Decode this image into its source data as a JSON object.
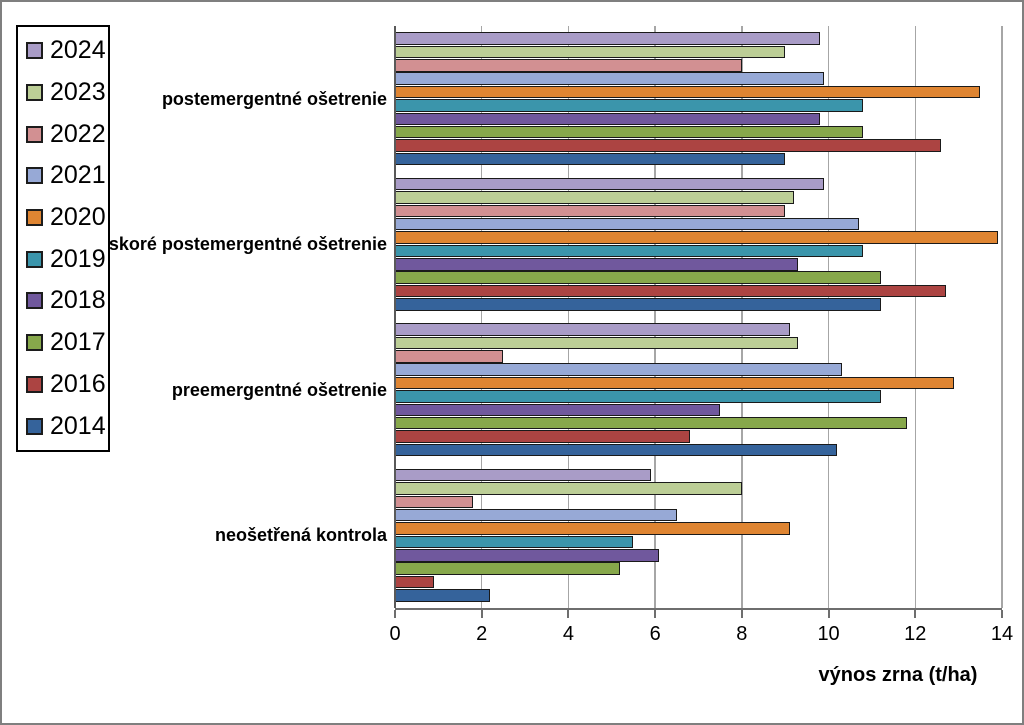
{
  "chart_data": {
    "type": "bar",
    "orientation": "horizontal",
    "title": "",
    "xlabel": "výnos zrna (t/ha)",
    "ylabel": "",
    "xlim": [
      0,
      14
    ],
    "x_ticks": [
      0,
      2,
      4,
      6,
      8,
      10,
      12,
      14
    ],
    "grid": true,
    "legend_position": "left",
    "categories": [
      "postemergentné ošetrenie",
      "skoré postemergentné ošetrenie",
      "preemergentné ošetrenie",
      "neošetřená kontrola"
    ],
    "series": [
      {
        "name": "2024",
        "color": "#A99CC7",
        "values": [
          9.8,
          9.9,
          9.1,
          5.9
        ]
      },
      {
        "name": "2023",
        "color": "#BCCE96",
        "values": [
          9.0,
          9.2,
          9.3,
          8.0
        ]
      },
      {
        "name": "2022",
        "color": "#D29092",
        "values": [
          8.0,
          9.0,
          2.5,
          1.8
        ]
      },
      {
        "name": "2021",
        "color": "#97A9D6",
        "values": [
          9.9,
          10.7,
          10.3,
          6.5
        ]
      },
      {
        "name": "2020",
        "color": "#DF8532",
        "values": [
          13.5,
          13.9,
          12.9,
          9.1
        ]
      },
      {
        "name": "2019",
        "color": "#3B95AB",
        "values": [
          10.8,
          10.8,
          11.2,
          5.5
        ]
      },
      {
        "name": "2018",
        "color": "#70589D",
        "values": [
          9.8,
          9.3,
          7.5,
          6.1
        ]
      },
      {
        "name": "2017",
        "color": "#87A84B",
        "values": [
          10.8,
          11.2,
          11.8,
          5.2
        ]
      },
      {
        "name": "2016",
        "color": "#AC4442",
        "values": [
          12.6,
          12.7,
          6.8,
          0.9
        ]
      },
      {
        "name": "2014",
        "color": "#35639B",
        "values": [
          9.0,
          11.2,
          10.2,
          2.2
        ]
      }
    ]
  }
}
